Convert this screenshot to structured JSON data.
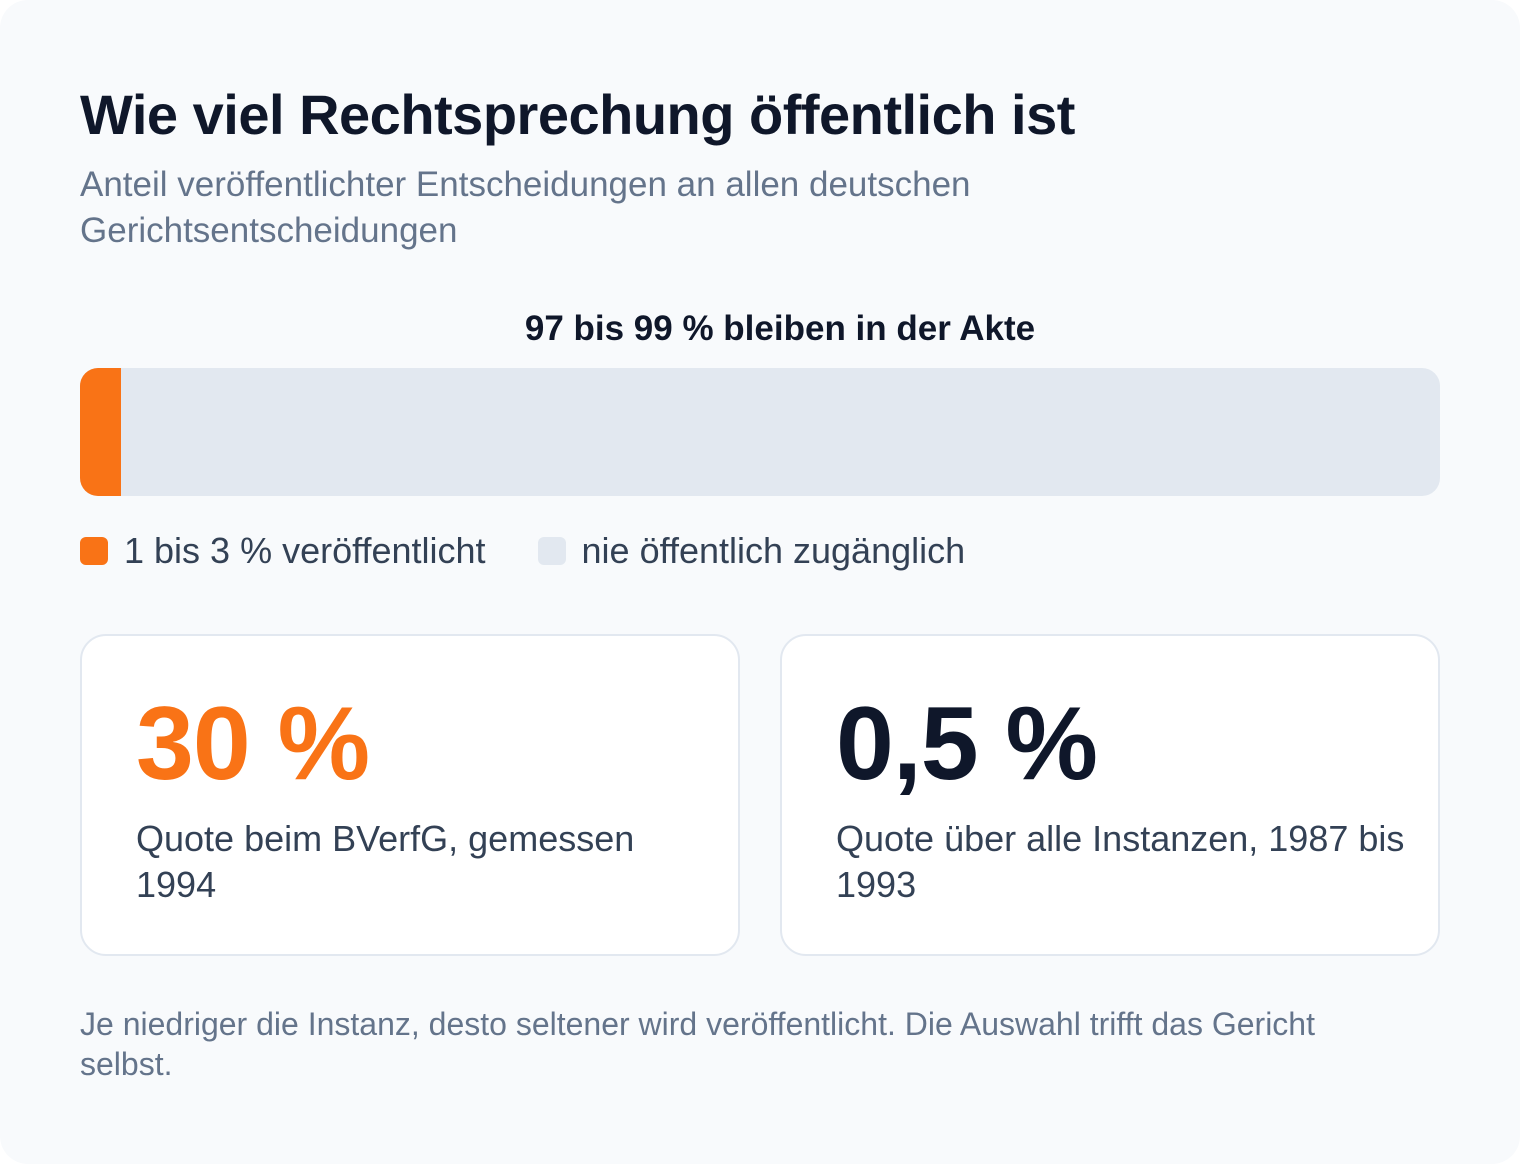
{
  "header": {
    "title": "Wie viel Rechtsprechung öffentlich ist",
    "subtitle": "Anteil veröffentlichter Entscheidungen an allen deutschen Gerichtsentscheidungen"
  },
  "chart_data": {
    "type": "bar",
    "stacked": true,
    "orientation": "horizontal",
    "bar_label": "97 bis 99 % bleiben in der Akte",
    "series": [
      {
        "name": "1 bis 3 % veröffentlicht",
        "value": 3,
        "color": "#f97316"
      },
      {
        "name": "nie öffentlich zugänglich",
        "value": 97,
        "color": "#e2e8f0"
      }
    ],
    "total": 100,
    "legend_position": "bottom-left"
  },
  "stats": [
    {
      "value": "30 %",
      "description": "Quote beim BVerfG, gemessen 1994",
      "color": "#f97316"
    },
    {
      "value": "0,5 %",
      "description": "Quote über alle Instanzen, 1987 bis 1993",
      "color": "#0f172a"
    }
  ],
  "footnote": "Je niedriger die Instanz, desto seltener wird veröffentlicht. Die Auswahl trifft das Gericht selbst."
}
